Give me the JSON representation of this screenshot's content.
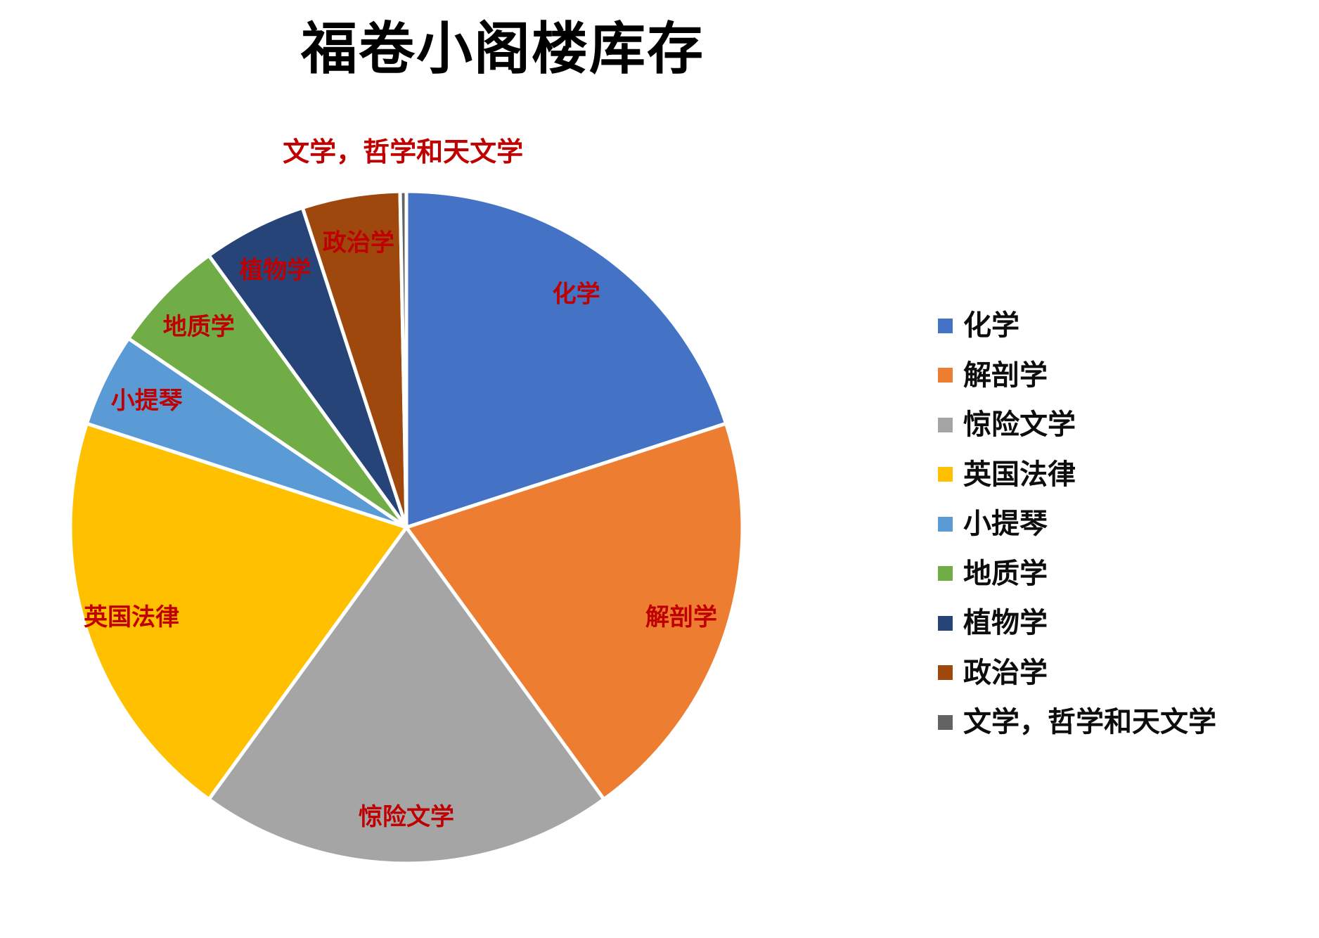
{
  "title": "福卷小阁楼库存",
  "label_color": "#C00000",
  "title_color": "#000000",
  "chart_data": {
    "type": "pie",
    "title": "福卷小阁楼库存",
    "legend_position": "right",
    "start_angle_deg": 0,
    "direction": "clockwise",
    "units": "percent",
    "slices": [
      {
        "label": "化学",
        "value": 20.0,
        "color": "#4472C4",
        "label_placement": "inside"
      },
      {
        "label": "解剖学",
        "value": 20.0,
        "color": "#ED7D31",
        "label_placement": "inside"
      },
      {
        "label": "惊险文学",
        "value": 20.0,
        "color": "#A5A5A5",
        "label_placement": "inside"
      },
      {
        "label": "英国法律",
        "value": 20.0,
        "color": "#FFC000",
        "label_placement": "inside"
      },
      {
        "label": "小提琴",
        "value": 4.5,
        "color": "#5B9BD5",
        "label_placement": "inside"
      },
      {
        "label": "地质学",
        "value": 5.5,
        "color": "#70AD47",
        "label_placement": "inside"
      },
      {
        "label": "植物学",
        "value": 5.0,
        "color": "#264478",
        "label_placement": "inside"
      },
      {
        "label": "政治学",
        "value": 4.7,
        "color": "#9E480E",
        "label_placement": "inside"
      },
      {
        "label": "文学，哲学和天文学",
        "value": 0.3,
        "color": "#636363",
        "label_placement": "outside-top"
      }
    ]
  },
  "legend": {
    "items": [
      {
        "label": "化学",
        "color": "#4472C4"
      },
      {
        "label": "解剖学",
        "color": "#ED7D31"
      },
      {
        "label": "惊险文学",
        "color": "#A5A5A5"
      },
      {
        "label": "英国法律",
        "color": "#FFC000"
      },
      {
        "label": "小提琴",
        "color": "#5B9BD5"
      },
      {
        "label": "地质学",
        "color": "#70AD47"
      },
      {
        "label": "植物学",
        "color": "#264478"
      },
      {
        "label": "政治学",
        "color": "#9E480E"
      },
      {
        "label": "文学，哲学和天文学",
        "color": "#636363"
      }
    ]
  }
}
